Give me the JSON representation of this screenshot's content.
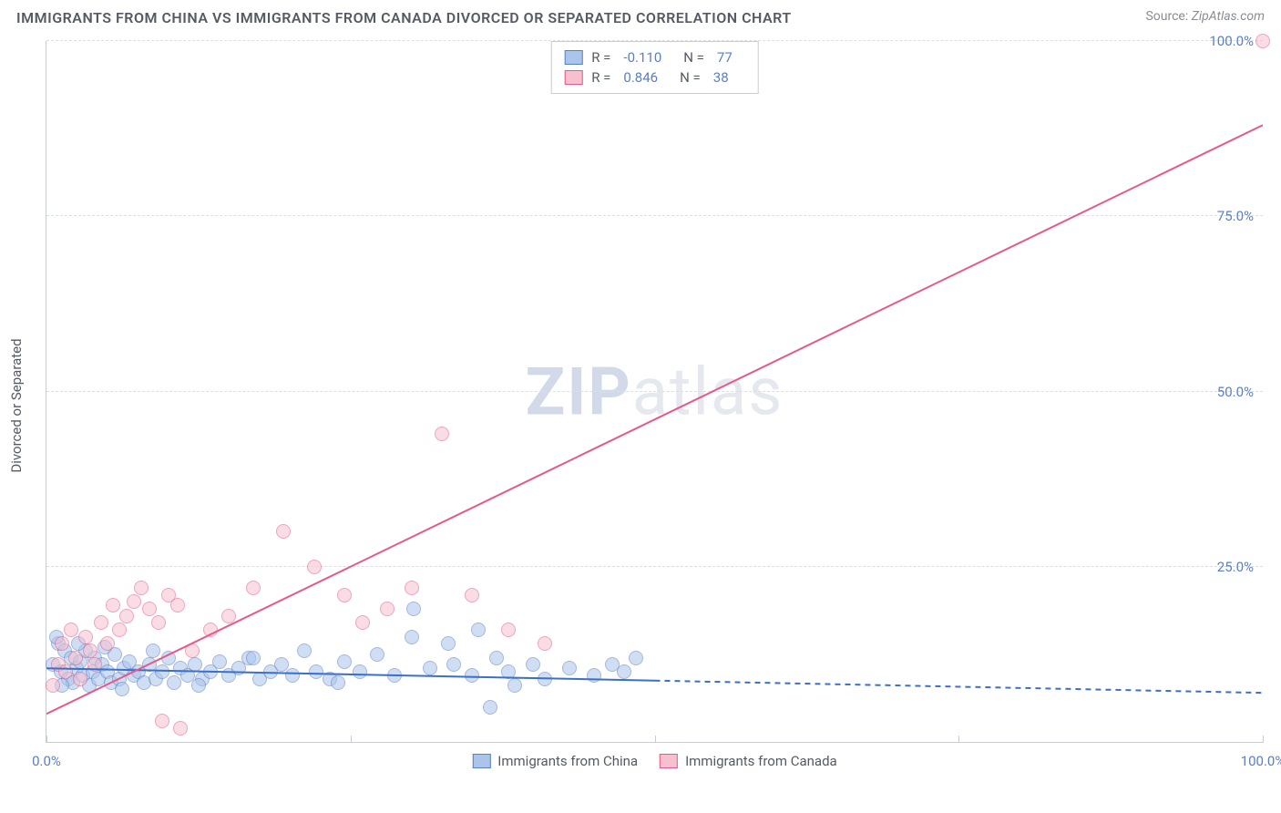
{
  "header": {
    "title": "IMMIGRANTS FROM CHINA VS IMMIGRANTS FROM CANADA DIVORCED OR SEPARATED CORRELATION CHART",
    "source_label": "Source:",
    "source_value": "ZipAtlas.com"
  },
  "watermark": {
    "bold": "ZIP",
    "rest": "atlas"
  },
  "chart": {
    "type": "scatter",
    "xlim": [
      0,
      100
    ],
    "ylim": [
      0,
      100
    ],
    "x_ticks": [
      0,
      25,
      50,
      75,
      100
    ],
    "x_tick_labels": [
      "0.0%",
      "",
      "",
      "",
      "100.0%"
    ],
    "y_ticks": [
      25,
      50,
      75,
      100
    ],
    "y_tick_labels": [
      "25.0%",
      "50.0%",
      "75.0%",
      "100.0%"
    ],
    "y_axis_title": "Divorced or Separated",
    "grid_color": "#dcdfe3",
    "axis_color": "#c9ccd1",
    "label_color": "#5a7fc4",
    "marker_radius": 8,
    "marker_opacity": 0.55,
    "series": [
      {
        "name": "Immigrants from China",
        "fill": "#aac4ea",
        "stroke": "#5a7fc4",
        "R": "-0.110",
        "N": "77",
        "trend": {
          "y_at_x0": 10.5,
          "y_at_x100": 7.0,
          "solid_until_x": 50,
          "line_color": "#3b6fc9",
          "line_width": 2
        },
        "points": [
          [
            0.5,
            11
          ],
          [
            1,
            14
          ],
          [
            1.2,
            10
          ],
          [
            1.5,
            13
          ],
          [
            1.8,
            9
          ],
          [
            2,
            12
          ],
          [
            2.2,
            8.5
          ],
          [
            2.5,
            10.5
          ],
          [
            2.8,
            11.5
          ],
          [
            3,
            9.5
          ],
          [
            3.2,
            13
          ],
          [
            3.5,
            8
          ],
          [
            3.8,
            10
          ],
          [
            4,
            12
          ],
          [
            4.3,
            9
          ],
          [
            4.6,
            11
          ],
          [
            5,
            10
          ],
          [
            5.3,
            8.5
          ],
          [
            5.6,
            12.5
          ],
          [
            6,
            9
          ],
          [
            6.4,
            10.5
          ],
          [
            6.8,
            11.5
          ],
          [
            7.2,
            9.5
          ],
          [
            7.6,
            10
          ],
          [
            8,
            8.5
          ],
          [
            8.5,
            11
          ],
          [
            9,
            9
          ],
          [
            9.5,
            10
          ],
          [
            10,
            12
          ],
          [
            10.5,
            8.5
          ],
          [
            11,
            10.5
          ],
          [
            11.6,
            9.5
          ],
          [
            12.2,
            11
          ],
          [
            12.8,
            9
          ],
          [
            13.5,
            10
          ],
          [
            14.2,
            11.5
          ],
          [
            15,
            9.5
          ],
          [
            15.8,
            10.5
          ],
          [
            16.6,
            12
          ],
          [
            17.5,
            9
          ],
          [
            18.4,
            10
          ],
          [
            19.3,
            11
          ],
          [
            20.2,
            9.5
          ],
          [
            21.2,
            13
          ],
          [
            22.2,
            10
          ],
          [
            23.3,
            9
          ],
          [
            24.5,
            11.5
          ],
          [
            25.8,
            10
          ],
          [
            27.2,
            12.5
          ],
          [
            28.6,
            9.5
          ],
          [
            30,
            15
          ],
          [
            30.2,
            19
          ],
          [
            31.5,
            10.5
          ],
          [
            33,
            14
          ],
          [
            33.5,
            11
          ],
          [
            35,
            9.5
          ],
          [
            35.5,
            16
          ],
          [
            36.5,
            5
          ],
          [
            37,
            12
          ],
          [
            38,
            10
          ],
          [
            38.5,
            8
          ],
          [
            40,
            11
          ],
          [
            41,
            9
          ],
          [
            43,
            10.5
          ],
          [
            45,
            9.5
          ],
          [
            46.5,
            11
          ],
          [
            47.5,
            10
          ],
          [
            48.5,
            12
          ],
          [
            0.8,
            15
          ],
          [
            1.3,
            8
          ],
          [
            2.6,
            14
          ],
          [
            4.8,
            13.5
          ],
          [
            6.2,
            7.5
          ],
          [
            8.8,
            13
          ],
          [
            12.5,
            8
          ],
          [
            17,
            12
          ],
          [
            24,
            8.5
          ]
        ]
      },
      {
        "name": "Immigrants from Canada",
        "fill": "#f6c0cf",
        "stroke": "#e55a8a",
        "R": "0.846",
        "N": "38",
        "trend": {
          "y_at_x0": 4,
          "y_at_x100": 88,
          "solid_until_x": 100,
          "line_color": "#e55a8a",
          "line_width": 2
        },
        "points": [
          [
            0.5,
            8
          ],
          [
            1,
            11
          ],
          [
            1.3,
            14
          ],
          [
            1.6,
            10
          ],
          [
            2,
            16
          ],
          [
            2.4,
            12
          ],
          [
            2.8,
            9
          ],
          [
            3.2,
            15
          ],
          [
            3.6,
            13
          ],
          [
            4,
            11
          ],
          [
            4.5,
            17
          ],
          [
            5,
            14
          ],
          [
            5.5,
            19.5
          ],
          [
            6,
            16
          ],
          [
            6.6,
            18
          ],
          [
            7.2,
            20
          ],
          [
            7.8,
            22
          ],
          [
            8.5,
            19
          ],
          [
            9.2,
            17
          ],
          [
            10,
            21
          ],
          [
            10.8,
            19.5
          ],
          [
            9.5,
            3
          ],
          [
            11,
            2
          ],
          [
            12,
            13
          ],
          [
            13.5,
            16
          ],
          [
            15,
            18
          ],
          [
            17,
            22
          ],
          [
            19.5,
            30
          ],
          [
            22,
            25
          ],
          [
            24.5,
            21
          ],
          [
            26,
            17
          ],
          [
            28,
            19
          ],
          [
            30,
            22
          ],
          [
            32.5,
            44
          ],
          [
            35,
            21
          ],
          [
            38,
            16
          ],
          [
            41,
            14
          ],
          [
            100,
            100
          ]
        ]
      }
    ],
    "legend_top": {
      "r_label": "R =",
      "n_label": "N ="
    },
    "legend_bottom": {
      "items": [
        "Immigrants from China",
        "Immigrants from Canada"
      ]
    }
  }
}
